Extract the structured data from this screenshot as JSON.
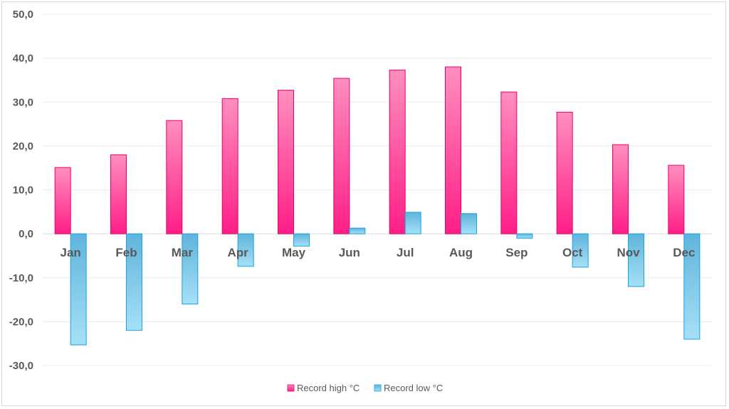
{
  "chart_data": {
    "type": "bar",
    "categories": [
      "Jan",
      "Feb",
      "Mar",
      "Apr",
      "May",
      "Jun",
      "Jul",
      "Aug",
      "Sep",
      "Oct",
      "Nov",
      "Dec"
    ],
    "series": [
      {
        "name": "Record high °C",
        "values": [
          15.1,
          18.0,
          25.8,
          30.8,
          32.7,
          35.4,
          37.3,
          38.0,
          32.3,
          27.7,
          20.3,
          15.6
        ],
        "color": "#ff4d9e"
      },
      {
        "name": "Record low °C",
        "values": [
          -25.3,
          -22.0,
          -16.0,
          -7.4,
          -2.8,
          1.3,
          4.9,
          4.6,
          -1.0,
          -7.6,
          -12.0,
          -24.0
        ],
        "color": "#66c6ee"
      }
    ],
    "y_ticks": [
      "50,0",
      "40,0",
      "30,0",
      "20,0",
      "10,0",
      "0,0",
      "-10,0",
      "-20,0",
      "-30,0"
    ],
    "ylim": [
      -30,
      50
    ],
    "grid": true,
    "legend": "bottom-center",
    "title": "",
    "xlabel": "",
    "ylabel": ""
  }
}
